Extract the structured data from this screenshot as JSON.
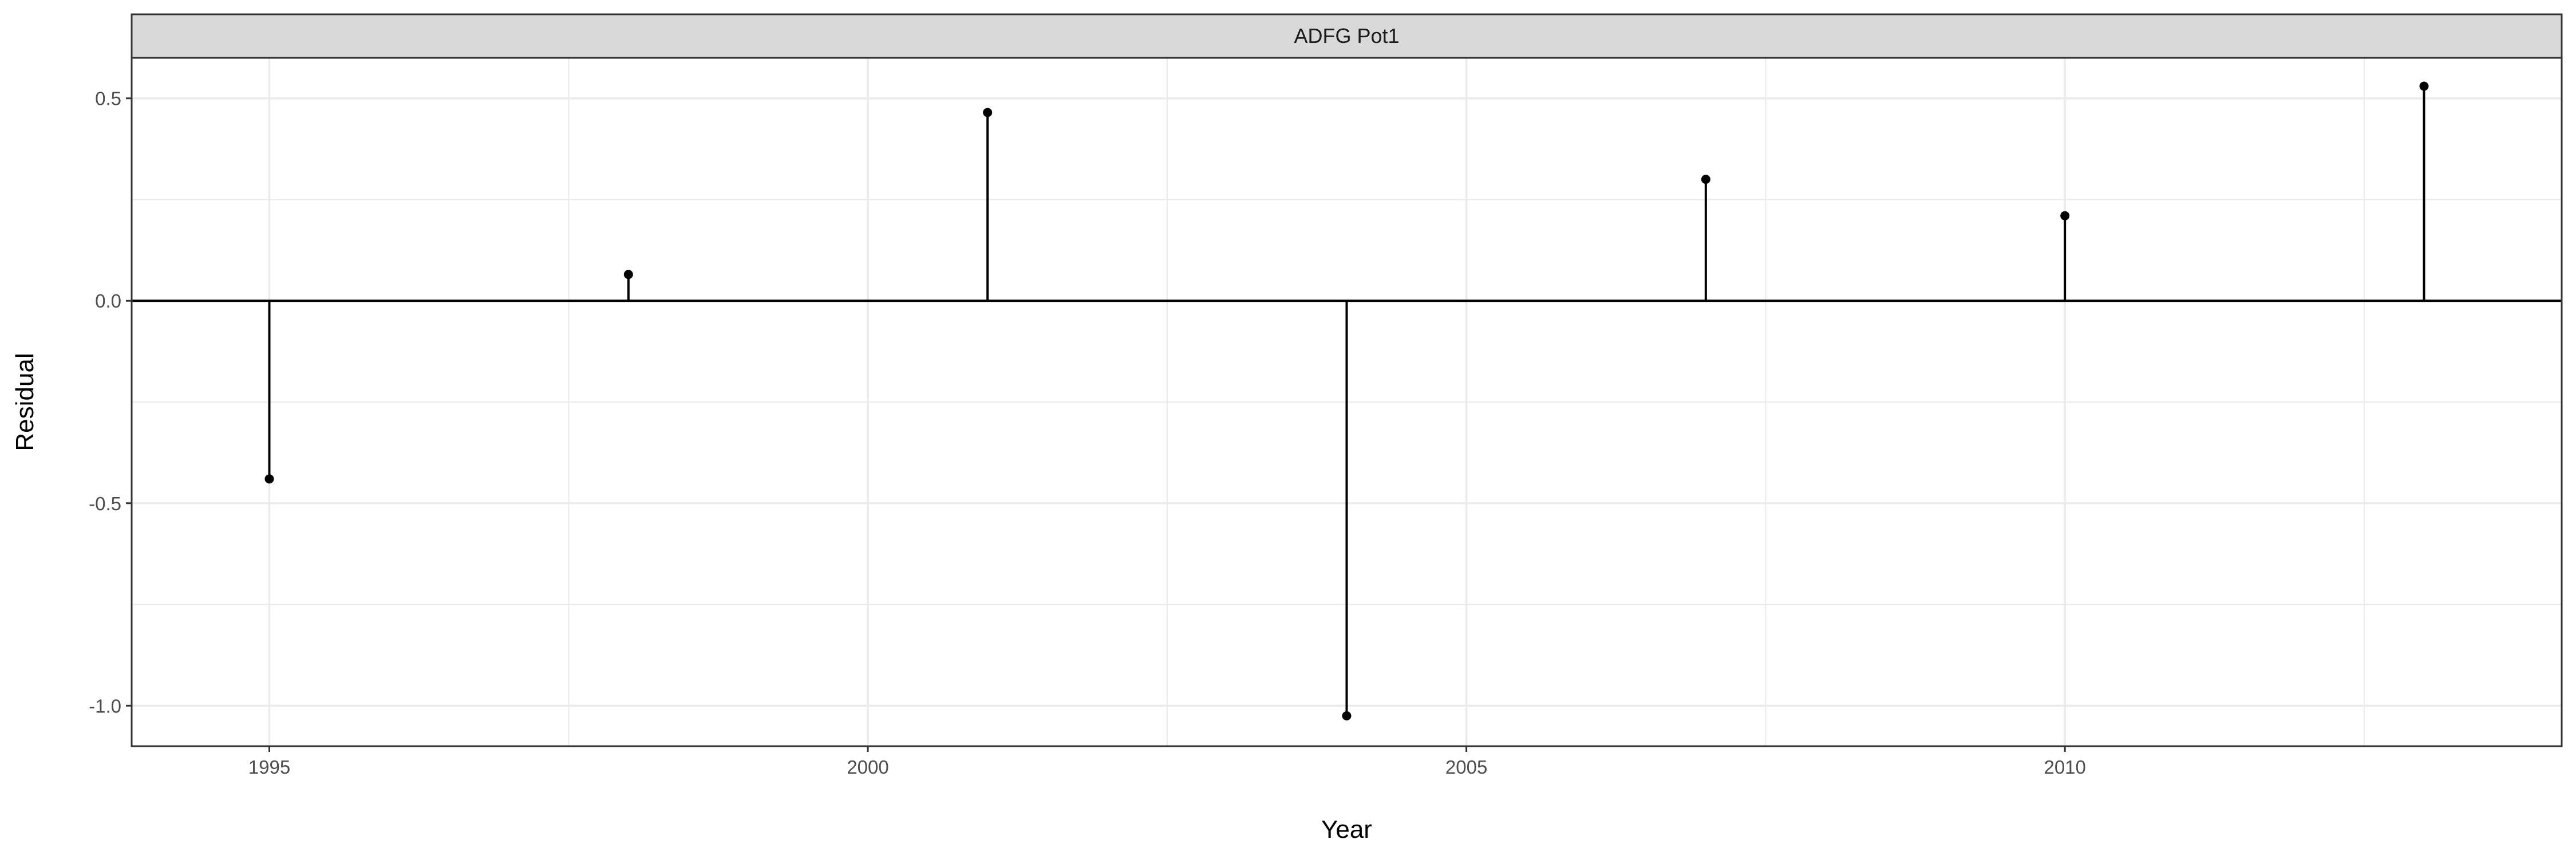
{
  "chart_data": {
    "type": "scatter",
    "style": "lollipop",
    "panel_title": "ADFG Pot1",
    "xlabel": "Year",
    "ylabel": "Residual",
    "xlim": [
      1993.85,
      2014.15
    ],
    "ylim": [
      -1.1,
      0.6
    ],
    "x_ticks": [
      1995,
      2000,
      2005,
      2010
    ],
    "x_tick_labels": [
      "1995",
      "2000",
      "2005",
      "2010"
    ],
    "y_ticks": [
      -1.0,
      -0.5,
      0.0,
      0.5
    ],
    "y_tick_labels": [
      "-1.0",
      "-0.5",
      "0.0",
      "0.5"
    ],
    "x_minor_ticks": [
      1997.5,
      2002.5,
      2007.5,
      2012.5
    ],
    "y_minor_ticks": [
      -0.75,
      -0.25,
      0.25
    ],
    "reference_line_y": 0,
    "grid": true,
    "colors": {
      "points": "#000000",
      "grid": "#ebebeb",
      "strip_fill": "#d9d9d9",
      "panel_border": "#333333"
    },
    "points": [
      {
        "x": 1995,
        "y": -0.44
      },
      {
        "x": 1998,
        "y": 0.065
      },
      {
        "x": 2001,
        "y": 0.465
      },
      {
        "x": 2004,
        "y": -1.025
      },
      {
        "x": 2007,
        "y": 0.3
      },
      {
        "x": 2010,
        "y": 0.21
      },
      {
        "x": 2013,
        "y": 0.53
      }
    ]
  }
}
